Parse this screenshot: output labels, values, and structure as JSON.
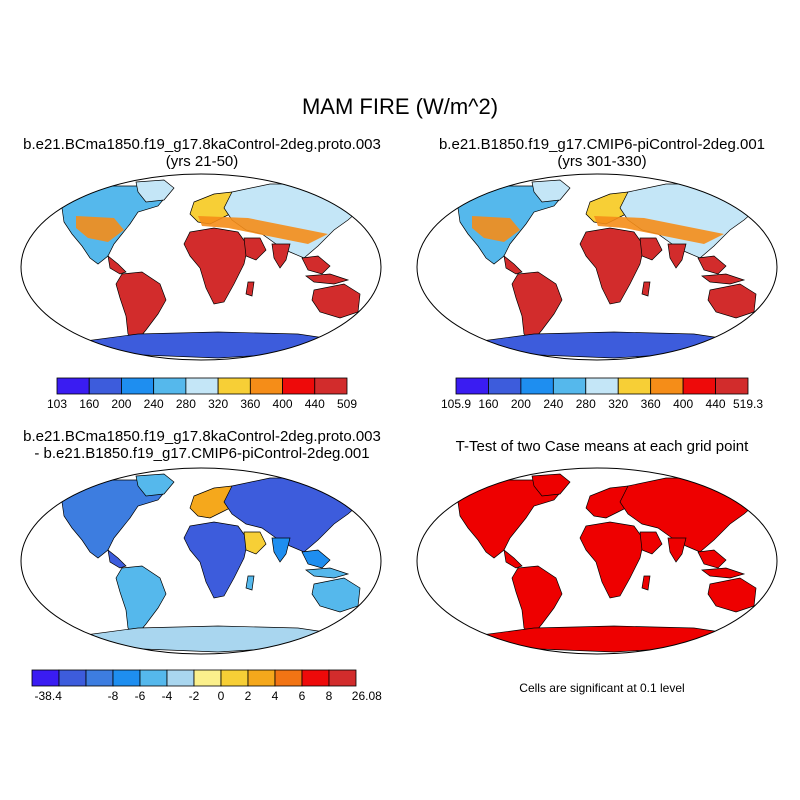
{
  "title": "MAM FIRE (W/m^2)",
  "panels": {
    "top_left": {
      "title_line1": "b.e21.BCma1850.f19_g17.8kaControl-2deg.proto.003",
      "title_line2": "(yrs 21-50)",
      "colorbar_labels": [
        "103",
        "160",
        "200",
        "240",
        "280",
        "320",
        "360",
        "400",
        "440",
        "509"
      ]
    },
    "top_right": {
      "title_line1": "b.e21.B1850.f19_g17.CMIP6-piControl-2deg.001",
      "title_line2": "(yrs 301-330)",
      "colorbar_labels": [
        "105.9",
        "160",
        "200",
        "240",
        "280",
        "320",
        "360",
        "400",
        "440",
        "519.3"
      ]
    },
    "bottom_left": {
      "title_line1": "b.e21.BCma1850.f19_g17.8kaControl-2deg.proto.003",
      "title_line2": "- b.e21.B1850.f19_g17.CMIP6-piControl-2deg.001",
      "colorbar_labels": [
        "-38.4",
        "-8",
        "-6",
        "-4",
        "-2",
        "0",
        "2",
        "4",
        "6",
        "8",
        "26.08"
      ]
    },
    "bottom_right": {
      "title_line1": "T-Test of two Case means at each grid point",
      "note": "Cells are significant at 0.1 level"
    }
  },
  "colors": {
    "abs_scale": [
      "#3a1cf2",
      "#3d5cdc",
      "#1e8ef0",
      "#55b8ec",
      "#c4e6f7",
      "#f7cf36",
      "#f58d18",
      "#ee0a0a",
      "#d22c2c"
    ],
    "diff_scale": [
      "#3a1cf2",
      "#3d5cdc",
      "#3d7de0",
      "#1e8ef0",
      "#55b8ec",
      "#a9d6ef",
      "#fbf08c",
      "#f7cf36",
      "#f5a81c",
      "#f27414",
      "#ee0a0a",
      "#d22c2c"
    ],
    "ttest": "#ee0000",
    "land_outline": "#000000"
  }
}
